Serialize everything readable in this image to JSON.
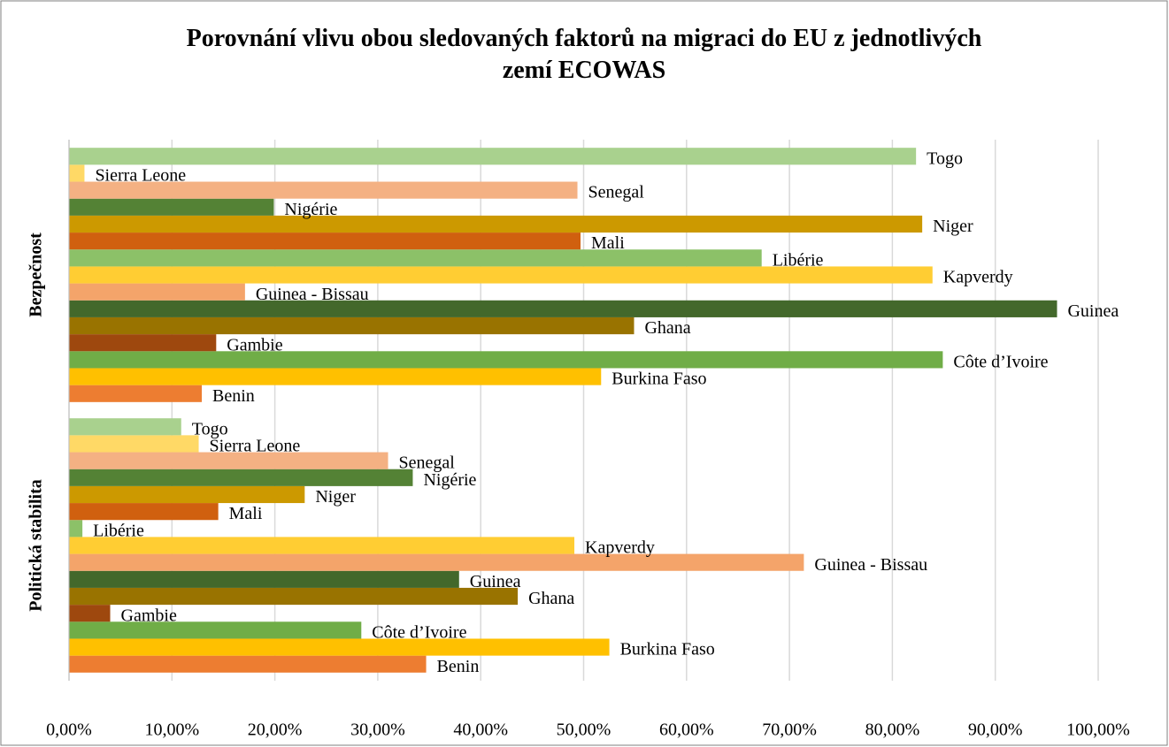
{
  "chart_data": {
    "type": "bar",
    "orientation": "horizontal",
    "title": "Porovnání vlivu obou sledovaných faktorů na migraci do EU z jednotlivých zemí ECOWAS",
    "categories": [
      "Politická stabilita",
      "Bezpečnost"
    ],
    "series": [
      {
        "name": "Benin",
        "color": "#ed7d31",
        "values": [
          34.7,
          12.9
        ]
      },
      {
        "name": "Burkina Faso",
        "color": "#ffc000",
        "values": [
          52.5,
          51.7
        ]
      },
      {
        "name": "Côte d’Ivoire",
        "color": "#70ad47",
        "values": [
          28.4,
          84.9
        ]
      },
      {
        "name": "Gambie",
        "color": "#9e480e",
        "values": [
          4.0,
          14.3
        ]
      },
      {
        "name": "Ghana",
        "color": "#997300",
        "values": [
          43.6,
          54.9
        ]
      },
      {
        "name": "Guinea",
        "color": "#43682b",
        "values": [
          37.9,
          96.0
        ]
      },
      {
        "name": "Guinea - Bissau",
        "color": "#f4a46a",
        "values": [
          71.4,
          17.1
        ]
      },
      {
        "name": "Kapverdy",
        "color": "#ffcd33",
        "values": [
          49.1,
          83.9
        ]
      },
      {
        "name": "Libérie",
        "color": "#8cc168",
        "values": [
          1.3,
          67.3
        ]
      },
      {
        "name": "Mali",
        "color": "#d0600f",
        "values": [
          14.5,
          49.7
        ]
      },
      {
        "name": "Niger",
        "color": "#cc9900",
        "values": [
          22.9,
          82.9
        ]
      },
      {
        "name": "Nigérie",
        "color": "#548235",
        "values": [
          33.4,
          19.9
        ]
      },
      {
        "name": "Senegal",
        "color": "#f4b183",
        "values": [
          31.0,
          49.4
        ]
      },
      {
        "name": "Sierra Leone",
        "color": "#ffd966",
        "values": [
          12.6,
          1.5
        ]
      },
      {
        "name": "Togo",
        "color": "#a9d18e",
        "values": [
          10.9,
          82.3
        ]
      }
    ],
    "xlim": [
      0,
      100
    ],
    "xticks": [
      {
        "value": 0,
        "label": "0,00%"
      },
      {
        "value": 10,
        "label": "10,00%"
      },
      {
        "value": 20,
        "label": "20,00%"
      },
      {
        "value": 30,
        "label": "30,00%"
      },
      {
        "value": 40,
        "label": "40,00%"
      },
      {
        "value": 50,
        "label": "50,00%"
      },
      {
        "value": 60,
        "label": "60,00%"
      },
      {
        "value": 70,
        "label": "70,00%"
      },
      {
        "value": 80,
        "label": "80,00%"
      },
      {
        "value": 90,
        "label": "90,00%"
      },
      {
        "value": 100,
        "label": "100,00%"
      }
    ],
    "grid": true
  }
}
